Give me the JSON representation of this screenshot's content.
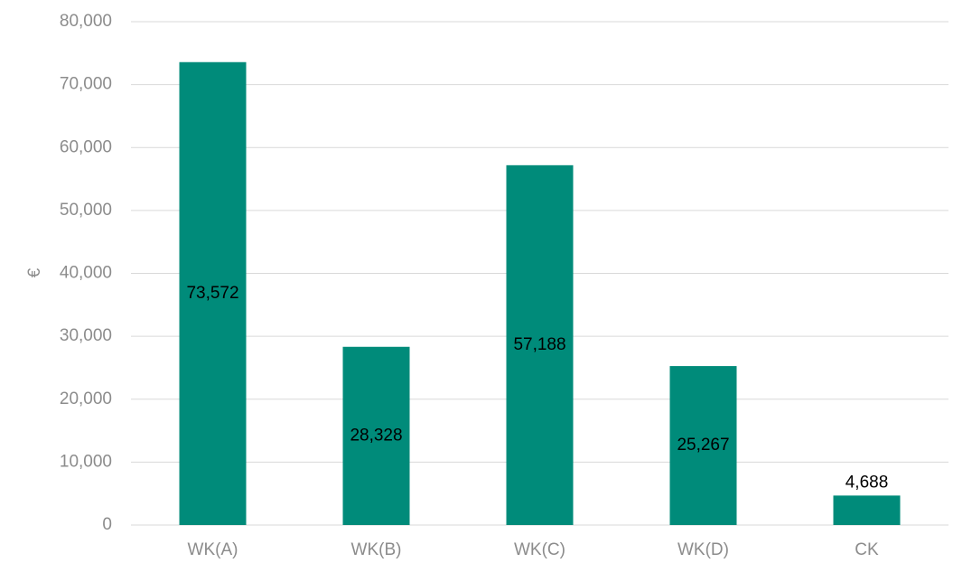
{
  "chart_data": {
    "type": "bar",
    "title": "",
    "xlabel": "",
    "ylabel": "€",
    "categories": [
      "WK(A)",
      "WK(B)",
      "WK(C)",
      "WK(D)",
      "CK"
    ],
    "values": [
      73572,
      28328,
      57188,
      25267,
      4688
    ],
    "value_labels": [
      "73,572",
      "28,328",
      "57,188",
      "25,267",
      "4,688"
    ],
    "ylim": [
      0,
      80000
    ],
    "yticks": [
      0,
      10000,
      20000,
      30000,
      40000,
      50000,
      60000,
      70000,
      80000
    ],
    "ytick_labels": [
      "0",
      "10,000",
      "20,000",
      "30,000",
      "40,000",
      "50,000",
      "60,000",
      "70,000",
      "80,000"
    ],
    "grid": true,
    "legend": "none",
    "bar_color": "#008b7a"
  }
}
